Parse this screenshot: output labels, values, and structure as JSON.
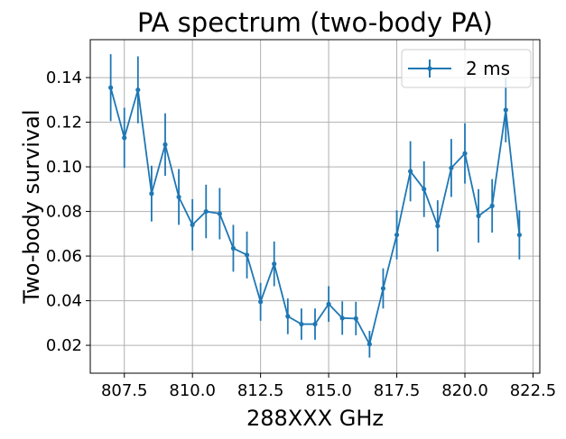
{
  "chart_data": {
    "type": "line",
    "title": "PA spectrum (two-body PA)",
    "xlabel": "288XXX GHz",
    "ylabel": "Two-body survival",
    "xlim": [
      806.25,
      822.75
    ],
    "ylim": [
      0.0075,
      0.157
    ],
    "xticks": [
      807.5,
      810.0,
      812.5,
      815.0,
      817.5,
      820.0,
      822.5
    ],
    "xtick_labels": [
      "807.5",
      "810.0",
      "812.5",
      "815.0",
      "817.5",
      "820.0",
      "822.5"
    ],
    "yticks": [
      0.02,
      0.04,
      0.06,
      0.08,
      0.1,
      0.12,
      0.14
    ],
    "ytick_labels": [
      "0.02",
      "0.04",
      "0.06",
      "0.08",
      "0.10",
      "0.12",
      "0.14"
    ],
    "grid": true,
    "legend_position": "top-right",
    "series": [
      {
        "name": "2 ms",
        "color": "#1f77b4",
        "x": [
          807.0,
          807.5,
          808.0,
          808.5,
          809.0,
          809.5,
          810.0,
          810.5,
          811.0,
          811.5,
          812.0,
          812.5,
          813.0,
          813.5,
          814.0,
          814.5,
          815.0,
          815.5,
          816.0,
          816.5,
          817.0,
          817.5,
          818.0,
          818.5,
          819.0,
          819.5,
          820.0,
          820.5,
          821.0,
          821.5,
          822.0
        ],
        "y": [
          0.1355,
          0.113,
          0.1345,
          0.088,
          0.11,
          0.0865,
          0.074,
          0.08,
          0.079,
          0.0635,
          0.0605,
          0.0395,
          0.0565,
          0.033,
          0.0295,
          0.0295,
          0.0385,
          0.0322,
          0.032,
          0.0205,
          0.0455,
          0.0695,
          0.098,
          0.09,
          0.0735,
          0.0995,
          0.106,
          0.078,
          0.0825,
          0.1255,
          0.0695
        ],
        "yerr": [
          0.015,
          0.0135,
          0.015,
          0.0125,
          0.014,
          0.0125,
          0.0115,
          0.012,
          0.0115,
          0.0105,
          0.0105,
          0.0085,
          0.01,
          0.008,
          0.007,
          0.007,
          0.008,
          0.0075,
          0.0075,
          0.006,
          0.009,
          0.011,
          0.0135,
          0.0125,
          0.0115,
          0.013,
          0.0135,
          0.012,
          0.012,
          0.0145,
          0.011
        ]
      }
    ]
  }
}
